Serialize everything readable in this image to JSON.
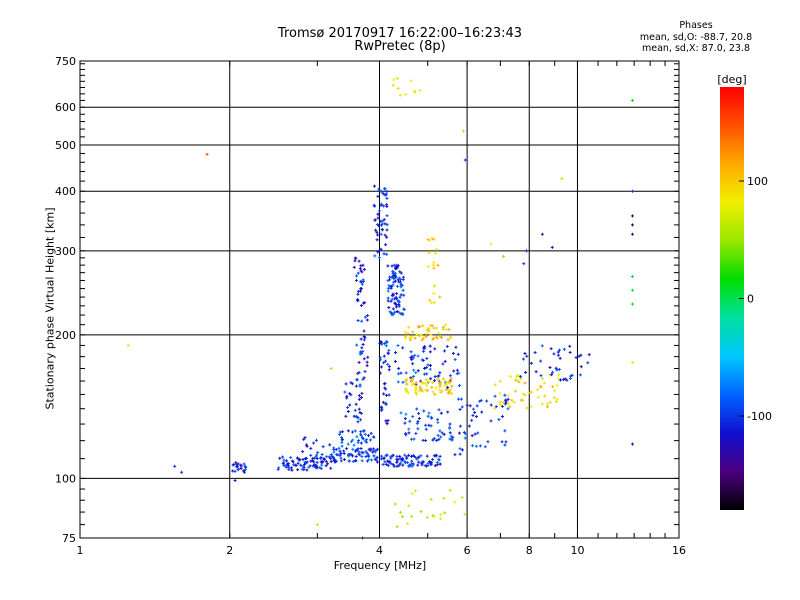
{
  "chart_data": {
    "type": "scatter",
    "title": "Tromsø 20170917 16:22:00–16:23:43",
    "subtitle": "RwPretec (8p)",
    "xlabel": "Frequency [MHz]",
    "ylabel": "Stationary phase Virtual Height [km]",
    "xscale": "log",
    "yscale": "log",
    "xlim": [
      1,
      16
    ],
    "ylim": [
      75,
      750
    ],
    "xticks": [
      1,
      2,
      4,
      6,
      8,
      10,
      16
    ],
    "yticks": [
      75,
      100,
      200,
      300,
      400,
      500,
      600,
      750
    ],
    "grid": true,
    "legend_position": "right",
    "info_box": {
      "heading": "Phases",
      "line1": "mean, sd,O: -88.7, 20.8",
      "line2": "mean, sd,X:  87.0, 23.8"
    },
    "colorbar": {
      "label": "[deg]",
      "range": [
        -180,
        180
      ],
      "ticks": [
        -100,
        0,
        100
      ],
      "colors": [
        "#000000",
        "#4b0082",
        "#1010d0",
        "#0064ff",
        "#00c8ff",
        "#00e0a0",
        "#00dd00",
        "#9ae600",
        "#f0f000",
        "#ffaa00",
        "#ff5000",
        "#ff0000"
      ]
    },
    "clusters": [
      {
        "x": [
          2.02,
          2.16
        ],
        "y": [
          103,
          108
        ],
        "n": 22,
        "phase": -110
      },
      {
        "x": [
          2.5,
          3.2
        ],
        "y": [
          104,
          111
        ],
        "n": 80,
        "phase": -105
      },
      {
        "x": [
          2.8,
          3.5
        ],
        "y": [
          110,
          122
        ],
        "n": 25,
        "phase": -100
      },
      {
        "x": [
          3.2,
          4.0
        ],
        "y": [
          108,
          116
        ],
        "n": 70,
        "phase": -100
      },
      {
        "x": [
          3.3,
          3.9
        ],
        "y": [
          115,
          126
        ],
        "n": 35,
        "phase": -95
      },
      {
        "x": [
          4.0,
          5.3
        ],
        "y": [
          106,
          112
        ],
        "n": 90,
        "phase": -105
      },
      {
        "x": [
          3.4,
          3.7
        ],
        "y": [
          130,
          160
        ],
        "n": 30,
        "phase": -110
      },
      {
        "x": [
          3.6,
          3.8
        ],
        "y": [
          160,
          220
        ],
        "n": 30,
        "phase": -110
      },
      {
        "x": [
          3.55,
          3.75
        ],
        "y": [
          230,
          290
        ],
        "n": 30,
        "phase": -110
      },
      {
        "x": [
          3.9,
          4.15
        ],
        "y": [
          290,
          410
        ],
        "n": 55,
        "phase": -105
      },
      {
        "x": [
          4.15,
          4.5
        ],
        "y": [
          220,
          280
        ],
        "n": 90,
        "phase": -100
      },
      {
        "x": [
          4.0,
          4.2
        ],
        "y": [
          130,
          200
        ],
        "n": 40,
        "phase": -105
      },
      {
        "x": [
          4.3,
          5.8
        ],
        "y": [
          155,
          190
        ],
        "n": 70,
        "phase": -100
      },
      {
        "x": [
          4.4,
          5.6
        ],
        "y": [
          120,
          140
        ],
        "n": 50,
        "phase": -95
      },
      {
        "x": [
          5.5,
          7.3
        ],
        "y": [
          112,
          150
        ],
        "n": 55,
        "phase": -100
      },
      {
        "x": [
          4.5,
          5.6
        ],
        "y": [
          150,
          162
        ],
        "n": 70,
        "phase": 95
      },
      {
        "x": [
          4.5,
          5.6
        ],
        "y": [
          195,
          210
        ],
        "n": 45,
        "phase": 95
      },
      {
        "x": [
          5.0,
          5.3
        ],
        "y": [
          230,
          320
        ],
        "n": 20,
        "phase": 90
      },
      {
        "x": [
          6.8,
          9.3
        ],
        "y": [
          140,
          165
        ],
        "n": 50,
        "phase": 90
      },
      {
        "x": [
          7.6,
          10.6
        ],
        "y": [
          160,
          190
        ],
        "n": 40,
        "phase": -110
      },
      {
        "x": [
          4.3,
          6.9
        ],
        "y": [
          78,
          96
        ],
        "n": 22,
        "phase": 70
      },
      {
        "x": [
          4.2,
          4.9
        ],
        "y": [
          630,
          690
        ],
        "n": 10,
        "phase": 90
      }
    ],
    "points": [
      {
        "x": 12.9,
        "y": 620,
        "phase": 10
      },
      {
        "x": 12.9,
        "y": 400,
        "phase": -100
      },
      {
        "x": 12.9,
        "y": 355,
        "phase": -160
      },
      {
        "x": 12.9,
        "y": 340,
        "phase": -160
      },
      {
        "x": 12.9,
        "y": 325,
        "phase": -150
      },
      {
        "x": 12.9,
        "y": 265,
        "phase": 5
      },
      {
        "x": 12.9,
        "y": 248,
        "phase": 10
      },
      {
        "x": 12.9,
        "y": 232,
        "phase": 20
      },
      {
        "x": 12.9,
        "y": 175,
        "phase": 90
      },
      {
        "x": 12.9,
        "y": 118,
        "phase": -140
      },
      {
        "x": 1.8,
        "y": 478,
        "phase": 150
      },
      {
        "x": 1.25,
        "y": 190,
        "phase": 70
      },
      {
        "x": 1.55,
        "y": 106,
        "phase": -100
      },
      {
        "x": 1.6,
        "y": 103,
        "phase": -100
      },
      {
        "x": 3.0,
        "y": 80,
        "phase": 60
      },
      {
        "x": 3.7,
        "y": 75,
        "phase": -100
      },
      {
        "x": 5.9,
        "y": 535,
        "phase": 100
      },
      {
        "x": 5.95,
        "y": 465,
        "phase": -100
      },
      {
        "x": 9.3,
        "y": 425,
        "phase": 60
      },
      {
        "x": 8.5,
        "y": 325,
        "phase": -140
      },
      {
        "x": 8.9,
        "y": 305,
        "phase": -140
      },
      {
        "x": 6.7,
        "y": 310,
        "phase": 80
      },
      {
        "x": 7.1,
        "y": 292,
        "phase": 110
      },
      {
        "x": 7.8,
        "y": 282,
        "phase": -100
      },
      {
        "x": 7.9,
        "y": 300,
        "phase": -100
      },
      {
        "x": 3.2,
        "y": 170,
        "phase": 100
      },
      {
        "x": 2.05,
        "y": 99,
        "phase": -110
      }
    ]
  }
}
